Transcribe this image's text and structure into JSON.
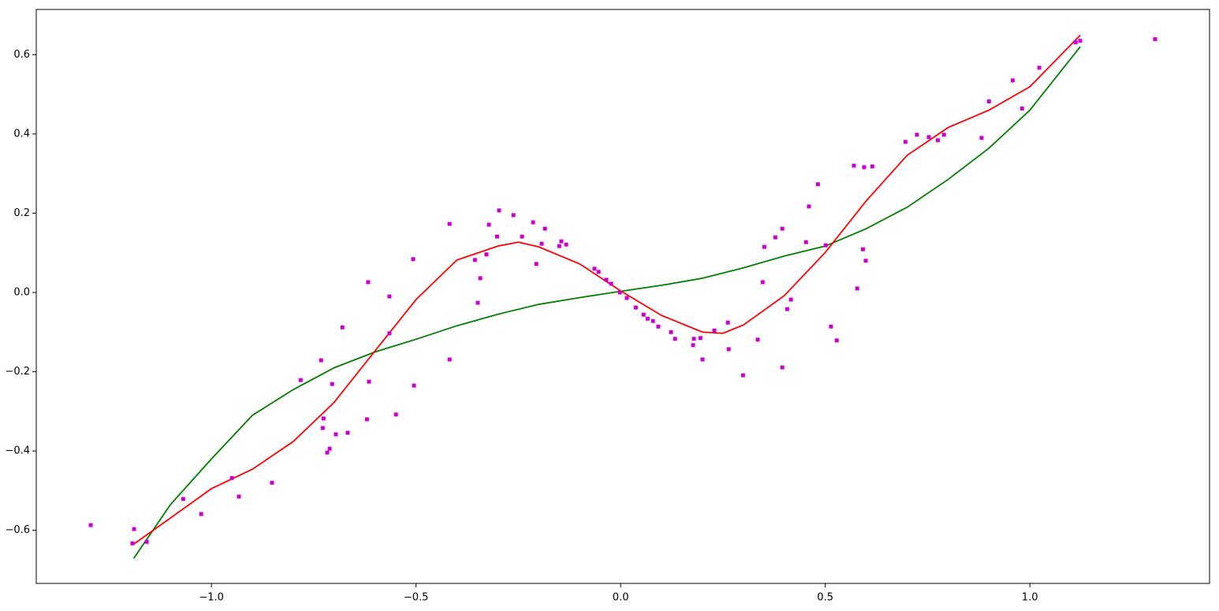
{
  "chart_data": {
    "type": "scatter",
    "xlim": [
      -1.428,
      1.439
    ],
    "ylim": [
      -0.734,
      0.714
    ],
    "xticks": [
      {
        "value": -1.0,
        "label": "−1.0"
      },
      {
        "value": -0.5,
        "label": "−0.5"
      },
      {
        "value": 0,
        "label": "0.0"
      },
      0.5,
      {
        "value": 1,
        "label": "1.0"
      }
    ],
    "yticks": [
      {
        "value": -0.6,
        "label": "−0.6"
      },
      {
        "value": -0.4,
        "label": "−0.4"
      },
      {
        "value": -0.2,
        "label": "−0.2"
      },
      {
        "value": 0,
        "label": "0.0"
      },
      0.2,
      0.4,
      0.6
    ],
    "grid": false,
    "series": [
      {
        "type": "scatter",
        "color": "#cc00cc",
        "x": [
          -1.295,
          -1.189,
          -1.193,
          -1.158,
          -1.069,
          -1.025,
          -0.95,
          -0.933,
          -0.852,
          -0.782,
          -0.732,
          -0.726,
          -0.728,
          -0.705,
          -0.711,
          -0.717,
          -0.696,
          -0.667,
          -0.68,
          -0.62,
          -0.617,
          -0.615,
          -0.565,
          -0.565,
          -0.549,
          -0.507,
          -0.505,
          -0.418,
          -0.418,
          -0.356,
          -0.349,
          -0.343,
          -0.328,
          -0.322,
          -0.302,
          -0.297,
          -0.262,
          -0.241,
          -0.214,
          -0.206,
          -0.193,
          -0.185,
          -0.15,
          -0.145,
          -0.133,
          -0.064,
          -0.054,
          -0.035,
          -0.023,
          -0.002,
          0.015,
          0.037,
          0.056,
          0.066,
          0.079,
          0.092,
          0.123,
          0.133,
          0.179,
          0.177,
          0.195,
          0.2,
          0.229,
          0.262,
          0.264,
          0.299,
          0.335,
          0.347,
          0.351,
          0.378,
          0.395,
          0.395,
          0.407,
          0.416,
          0.453,
          0.46,
          0.482,
          0.501,
          0.514,
          0.528,
          0.57,
          0.578,
          0.592,
          0.595,
          0.599,
          0.615,
          0.696,
          0.724,
          0.753,
          0.775,
          0.79,
          0.882,
          0.9,
          0.958,
          0.981,
          1.023,
          1.112,
          1.123,
          1.306
        ],
        "values": [
          -0.587,
          -0.597,
          -0.633,
          -0.629,
          -0.521,
          -0.559,
          -0.468,
          -0.515,
          -0.48,
          -0.221,
          -0.171,
          -0.318,
          -0.342,
          -0.231,
          -0.394,
          -0.404,
          -0.358,
          -0.354,
          -0.088,
          -0.32,
          0.026,
          -0.225,
          -0.01,
          -0.103,
          -0.308,
          0.084,
          -0.235,
          0.173,
          -0.169,
          0.082,
          -0.026,
          0.036,
          0.096,
          0.171,
          0.141,
          0.207,
          0.195,
          0.141,
          0.177,
          0.072,
          0.123,
          0.161,
          0.117,
          0.129,
          0.121,
          0.06,
          0.052,
          0.032,
          0.022,
          0.0,
          -0.014,
          -0.038,
          -0.056,
          -0.066,
          -0.072,
          -0.086,
          -0.1,
          -0.117,
          -0.117,
          -0.133,
          -0.115,
          -0.169,
          -0.096,
          -0.076,
          -0.143,
          -0.209,
          -0.119,
          0.026,
          0.115,
          0.139,
          0.161,
          -0.189,
          -0.042,
          -0.018,
          0.127,
          0.217,
          0.273,
          0.119,
          -0.086,
          -0.121,
          0.32,
          0.01,
          0.109,
          0.316,
          0.08,
          0.318,
          0.38,
          0.398,
          0.392,
          0.384,
          0.398,
          0.39,
          0.482,
          0.535,
          0.464,
          0.567,
          0.631,
          0.635,
          0.639
        ]
      },
      {
        "type": "line",
        "color": "#008000",
        "x": [
          -1.19,
          -1.1,
          -1.0,
          -0.9,
          -0.8,
          -0.7,
          -0.6,
          -0.5,
          -0.4,
          -0.3,
          -0.2,
          -0.1,
          0,
          0.1,
          0.2,
          0.3,
          0.4,
          0.5,
          0.6,
          0.7,
          0.8,
          0.9,
          1.0,
          1.123
        ],
        "values": [
          -0.671,
          -0.535,
          -0.42,
          -0.31,
          -0.245,
          -0.19,
          -0.15,
          -0.118,
          -0.084,
          -0.055,
          -0.03,
          -0.013,
          0.003,
          0.018,
          0.036,
          0.062,
          0.092,
          0.117,
          0.161,
          0.215,
          0.285,
          0.364,
          0.46,
          0.62
        ]
      },
      {
        "type": "line",
        "color": "#ff0000",
        "x": [
          -1.19,
          -1.1,
          -1.0,
          -0.9,
          -0.8,
          -0.7,
          -0.6,
          -0.5,
          -0.4,
          -0.3,
          -0.25,
          -0.2,
          -0.1,
          0,
          0.1,
          0.2,
          0.25,
          0.3,
          0.4,
          0.5,
          0.6,
          0.7,
          0.8,
          0.9,
          1.0,
          1.123
        ],
        "values": [
          -0.635,
          -0.569,
          -0.495,
          -0.446,
          -0.376,
          -0.277,
          -0.147,
          -0.018,
          0.082,
          0.117,
          0.127,
          0.115,
          0.072,
          0.004,
          -0.058,
          -0.1,
          -0.103,
          -0.082,
          -0.008,
          0.101,
          0.231,
          0.346,
          0.416,
          0.46,
          0.519,
          0.649
        ]
      }
    ]
  }
}
